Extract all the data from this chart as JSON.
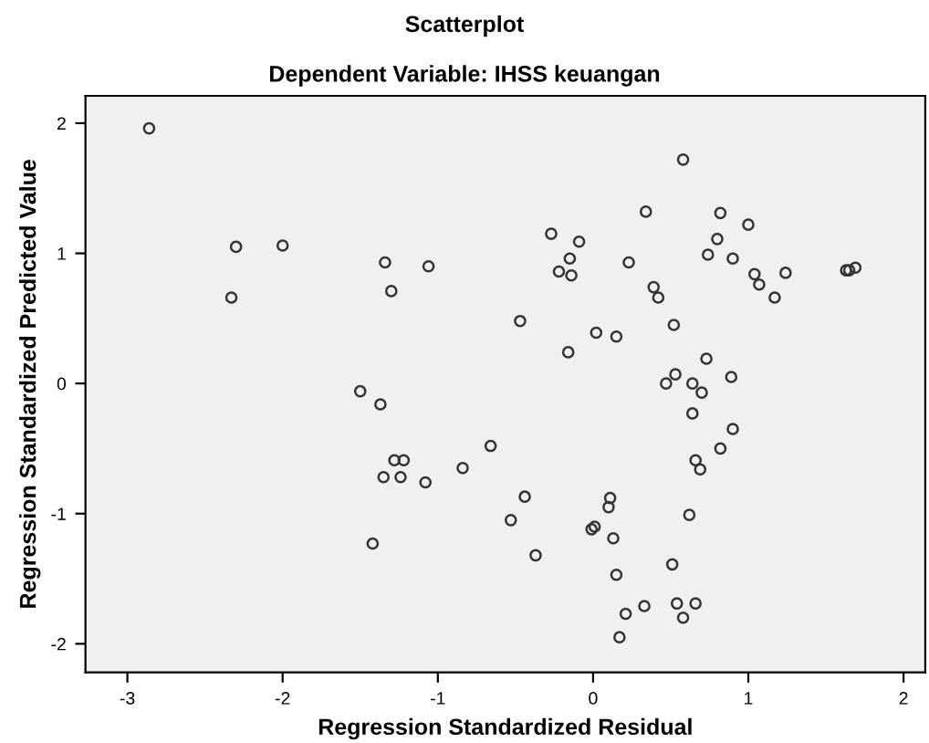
{
  "chart_data": {
    "type": "scatter",
    "title": "Scatterplot",
    "subtitle": "Dependent Variable: IHSS keuangan",
    "xlabel": "Regression Standardized Residual",
    "ylabel": "Regression Standardized Predicted Value",
    "xlim": [
      -3.27,
      2.14
    ],
    "ylim": [
      -2.22,
      2.21
    ],
    "xticks": [
      -3,
      -2,
      -1,
      0,
      1,
      2
    ],
    "yticks": [
      -2,
      -1,
      0,
      1,
      2
    ],
    "grid": false,
    "marker": "circle",
    "series": [
      {
        "color": "#333333",
        "x": [
          -2.86,
          -2.3,
          -2.0,
          -2.33,
          -1.34,
          -1.06,
          -1.3,
          -1.5,
          -1.37,
          -0.66,
          -0.84,
          -1.28,
          -1.22,
          -1.35,
          -1.24,
          -1.08,
          -1.42,
          -0.53,
          0.58,
          0.34,
          0.82,
          1.0,
          -0.27,
          -0.09,
          0.8,
          -0.15,
          0.23,
          0.74,
          0.9,
          -0.22,
          -0.14,
          1.04,
          1.24,
          1.07,
          1.17,
          1.63,
          1.65,
          1.69,
          0.39,
          0.42,
          -0.47,
          0.52,
          0.02,
          0.15,
          -0.16,
          0.73,
          0.53,
          0.47,
          0.64,
          0.89,
          0.7,
          0.64,
          0.9,
          0.82,
          0.66,
          0.69,
          -0.44,
          0.11,
          0.1,
          0.62,
          -0.01,
          0.01,
          0.13,
          -0.37,
          0.51,
          0.15,
          0.54,
          0.66,
          0.33,
          0.21,
          0.58,
          0.17
        ],
        "values": [
          1.96,
          1.05,
          1.06,
          0.66,
          0.93,
          0.9,
          0.71,
          -0.06,
          -0.16,
          -0.48,
          -0.65,
          -0.59,
          -0.59,
          -0.72,
          -0.72,
          -0.76,
          -1.23,
          -1.05,
          1.72,
          1.32,
          1.31,
          1.22,
          1.15,
          1.09,
          1.11,
          0.96,
          0.93,
          0.99,
          0.96,
          0.86,
          0.83,
          0.84,
          0.85,
          0.76,
          0.66,
          0.87,
          0.87,
          0.89,
          0.74,
          0.66,
          0.48,
          0.45,
          0.39,
          0.36,
          0.24,
          0.19,
          0.07,
          0.0,
          0.0,
          0.05,
          -0.07,
          -0.23,
          -0.35,
          -0.5,
          -0.59,
          -0.66,
          -0.87,
          -0.88,
          -0.95,
          -1.01,
          -1.12,
          -1.1,
          -1.19,
          -1.32,
          -1.39,
          -1.47,
          -1.69,
          -1.69,
          -1.71,
          -1.77,
          -1.8,
          -1.95
        ]
      }
    ]
  }
}
